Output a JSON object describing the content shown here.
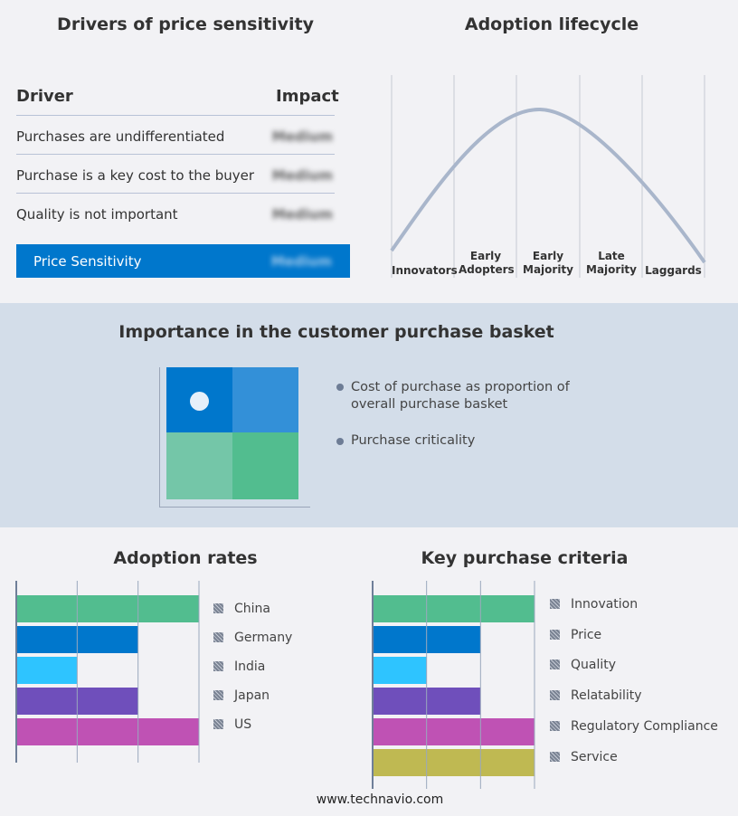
{
  "drivers": {
    "title": "Drivers of price sensitivity",
    "col_driver": "Driver",
    "col_impact": "Impact",
    "rows": [
      {
        "driver": "Purchases are undifferentiated",
        "impact": "Medium"
      },
      {
        "driver": "Purchase is a key cost to the buyer",
        "impact": "Medium"
      },
      {
        "driver": "Quality is not important",
        "impact": "Medium"
      }
    ],
    "summary": {
      "label": "Price Sensitivity",
      "impact": "Medium"
    },
    "accent": "#0077cc"
  },
  "lifecycle": {
    "title": "Adoption lifecycle",
    "stages": [
      "Innovators",
      "Early Adopters",
      "Early Majority",
      "Late Majority",
      "Laggards"
    ]
  },
  "basket": {
    "title": "Importance in the customer purchase basket",
    "legend": [
      "Cost of purchase as proportion of overall purchase basket",
      "Purchase criticality"
    ],
    "colors": [
      "#0077cc",
      "#3390d8",
      "#74c6a8",
      "#52bd8f"
    ]
  },
  "chart_data": [
    {
      "type": "bar",
      "title": "Adoption rates",
      "categories": [
        "China",
        "Germany",
        "India",
        "Japan",
        "US"
      ],
      "values": [
        3,
        2,
        1,
        2,
        3
      ],
      "xlim": [
        0,
        3
      ],
      "grid": true,
      "legend": "right",
      "colors": [
        "#52bd8f",
        "#0077cc",
        "#2ec4ff",
        "#6f4fbb",
        "#bf52b4"
      ]
    },
    {
      "type": "bar",
      "title": "Key purchase criteria",
      "categories": [
        "Innovation",
        "Price",
        "Quality",
        "Relatability",
        "Regulatory Compliance",
        "Service"
      ],
      "values": [
        3,
        2,
        1,
        2,
        3,
        3
      ],
      "xlim": [
        0,
        3
      ],
      "grid": true,
      "legend": "right",
      "colors": [
        "#52bd8f",
        "#0077cc",
        "#2ec4ff",
        "#6f4fbb",
        "#bf52b4",
        "#bfb952"
      ]
    }
  ],
  "footer": "www.technavio.com"
}
